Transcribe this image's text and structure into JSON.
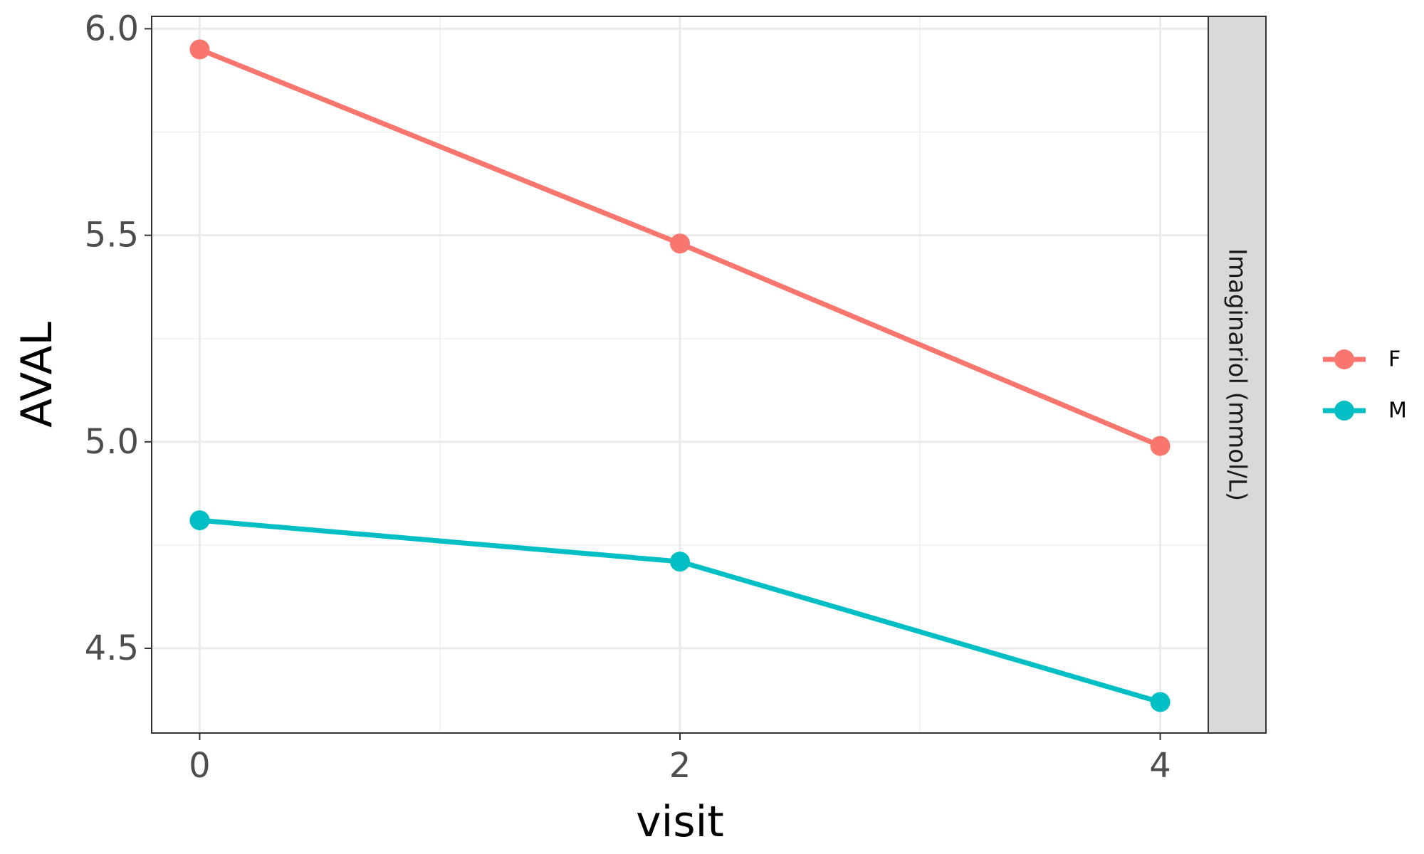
{
  "chart_data": {
    "type": "line",
    "xlabel": "visit",
    "ylabel": "AVAL",
    "facet_label": "Imaginariol (mmol/L)",
    "x": [
      0,
      2,
      4
    ],
    "x_ticks": [
      "0",
      "2",
      "4"
    ],
    "xlim": [
      -0.2,
      4.2
    ],
    "y_ticks": [
      "4.5",
      "5.0",
      "5.5",
      "6.0"
    ],
    "ylim": [
      4.295,
      6.03
    ],
    "grid": true,
    "legend_position": "right",
    "series": [
      {
        "name": "F",
        "color": "#F8766D",
        "values": [
          5.95,
          5.48,
          4.99
        ]
      },
      {
        "name": "M",
        "color": "#00BFC4",
        "values": [
          4.81,
          4.71,
          4.37
        ]
      }
    ]
  }
}
